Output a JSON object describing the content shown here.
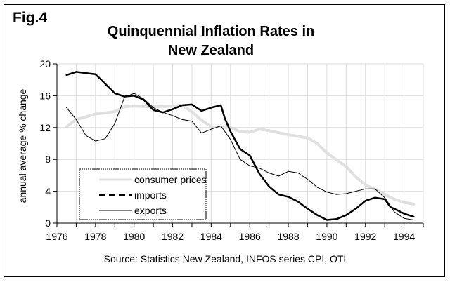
{
  "figure_label": "Fig.4",
  "chart_data": {
    "type": "line",
    "title": "Quinquennial Inflation Rates in New Zealand",
    "xlabel": "",
    "ylabel": "annual average % change",
    "source": "Source: Statistics New Zealand, INFOS series CPI, OTI",
    "xlim": [
      1976,
      1995
    ],
    "ylim": [
      0,
      20
    ],
    "x_ticks": [
      1976,
      1978,
      1980,
      1982,
      1984,
      1986,
      1988,
      1990,
      1992,
      1994
    ],
    "y_ticks": [
      0,
      4,
      8,
      12,
      16,
      20
    ],
    "grid": true,
    "legend_position": "bottom-left",
    "series": [
      {
        "name": "consumer prices",
        "color": "#e0e0e0",
        "style": "thick-solid",
        "x": [
          1976.5,
          1977,
          1978,
          1979,
          1979.5,
          1980,
          1981,
          1982,
          1982.5,
          1983,
          1983.5,
          1984,
          1985,
          1985.5,
          1986,
          1986.5,
          1987,
          1988,
          1989,
          1989.5,
          1990,
          1991,
          1991.5,
          1992,
          1992.5,
          1993,
          1993.5,
          1994,
          1994.5
        ],
        "y": [
          12.1,
          13.0,
          13.7,
          14.0,
          14.6,
          14.7,
          14.6,
          14.7,
          14.8,
          14.0,
          12.9,
          12.1,
          12.0,
          11.5,
          11.4,
          11.8,
          11.6,
          11.1,
          10.7,
          10.0,
          8.8,
          7.1,
          5.8,
          4.8,
          4.2,
          3.6,
          3.0,
          2.6,
          2.4
        ]
      },
      {
        "name": "imports",
        "color": "#000000",
        "style": "dashed",
        "x": [
          1976.5,
          1977,
          1978,
          1978.5,
          1979,
          1979.5,
          1980,
          1980.5,
          1981,
          1981.5,
          1982,
          1982.5,
          1983,
          1983.5,
          1984,
          1984.5,
          1984.7,
          1985,
          1985.5,
          1986,
          1986.5,
          1987,
          1987.5,
          1988,
          1988.5,
          1989,
          1989.5,
          1990,
          1990.5,
          1991,
          1991.5,
          1992,
          1992.5,
          1993,
          1993.3,
          1993.5,
          1994,
          1994.5
        ],
        "y": [
          18.6,
          19.0,
          18.7,
          17.5,
          16.3,
          15.9,
          16.0,
          15.5,
          14.2,
          13.9,
          14.3,
          14.8,
          14.9,
          14.1,
          14.5,
          14.8,
          13.2,
          11.5,
          9.3,
          8.5,
          6.2,
          4.6,
          3.6,
          3.3,
          2.7,
          1.8,
          1.0,
          0.4,
          0.5,
          1.0,
          1.8,
          2.8,
          3.2,
          3.0,
          2.0,
          1.8,
          1.2,
          0.8
        ]
      },
      {
        "name": "exports",
        "color": "#000000",
        "style": "thin-solid",
        "x": [
          1976.5,
          1977,
          1977.5,
          1978,
          1978.5,
          1979,
          1979.5,
          1980,
          1980.5,
          1981,
          1981.5,
          1982,
          1982.5,
          1983,
          1983.5,
          1984,
          1984.5,
          1985,
          1985.5,
          1986,
          1986.5,
          1987,
          1987.5,
          1988,
          1988.5,
          1989,
          1989.5,
          1990,
          1990.5,
          1991,
          1991.5,
          1992,
          1992.5,
          1993,
          1993.5,
          1994,
          1994.5
        ],
        "y": [
          14.5,
          13.0,
          11.0,
          10.3,
          10.6,
          12.5,
          15.8,
          16.3,
          15.6,
          14.5,
          13.9,
          13.5,
          13.0,
          12.8,
          11.3,
          11.8,
          12.2,
          10.5,
          8.0,
          7.2,
          6.9,
          6.3,
          5.9,
          6.5,
          6.3,
          5.5,
          4.5,
          3.9,
          3.6,
          3.7,
          4.0,
          4.3,
          4.3,
          3.2,
          1.4,
          0.6,
          0.4
        ]
      }
    ]
  }
}
